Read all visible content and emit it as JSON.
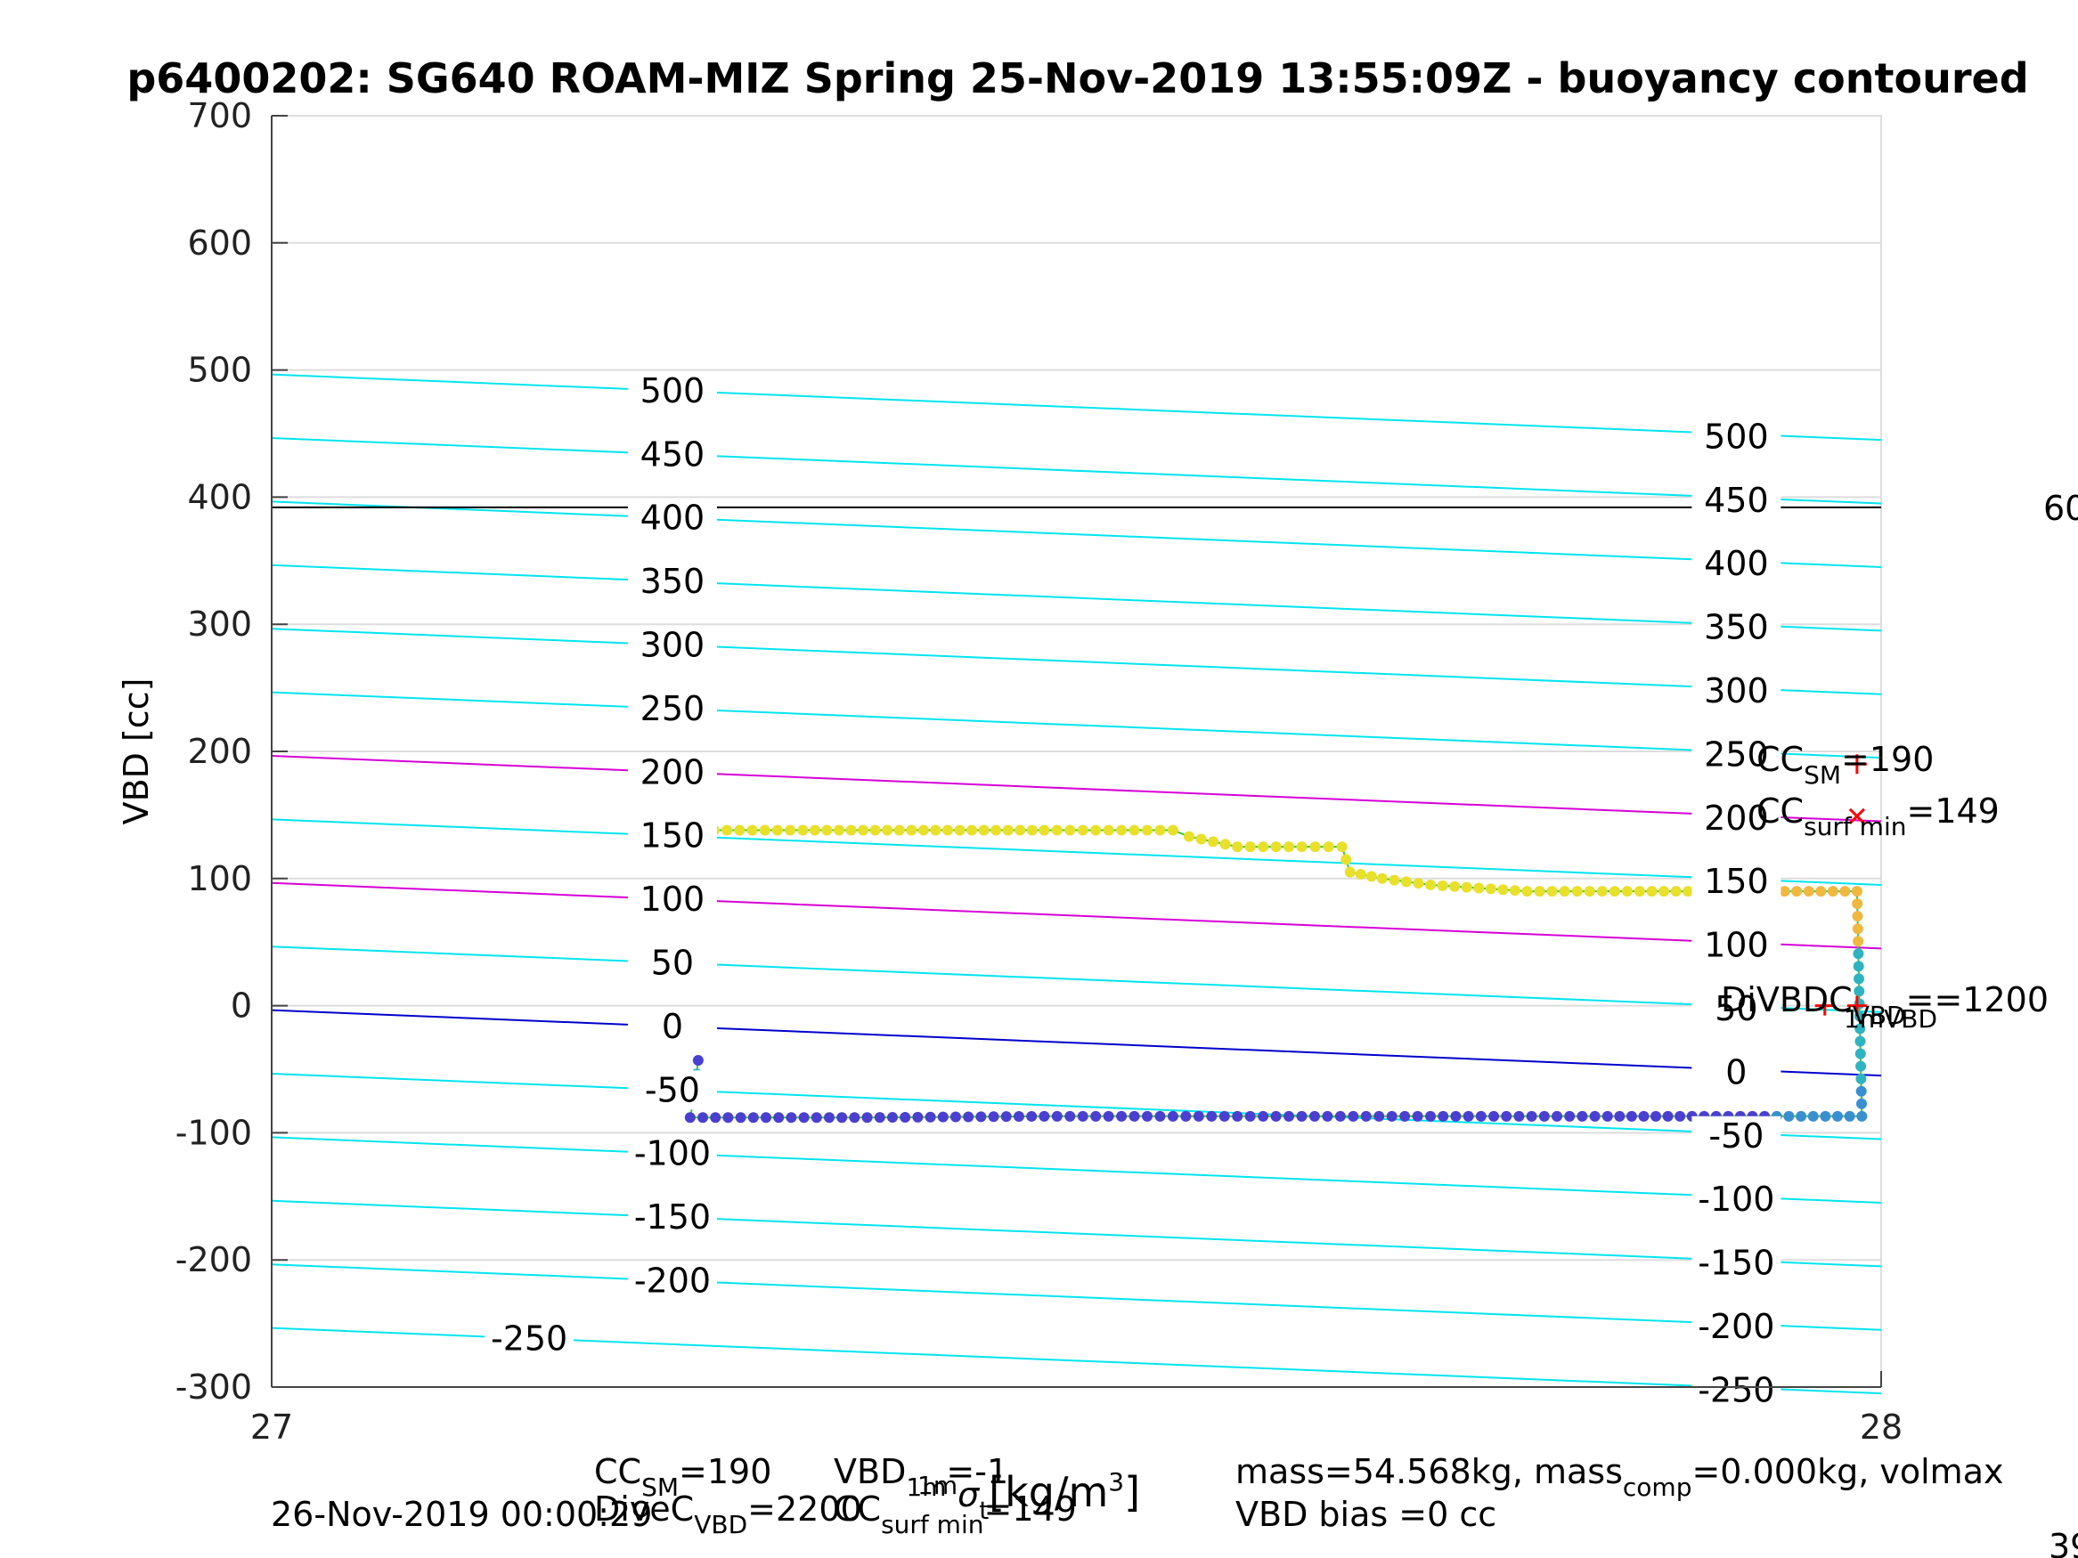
{
  "chart_data": {
    "type": "scatter",
    "title": "p6400202: SG640 ROAM-MIZ Spring 25-Nov-2019 13:55:09Z - buoyancy contoured",
    "ylabel": "VBD [cc]",
    "xlabel_main": "σ",
    "xlabel_sub": "t",
    "xlabel_sup": "1m",
    "xlabel_units": "[kg/m",
    "xlabel_units_sup": "3",
    "xlabel_units_end": "]",
    "xlim": [
      27,
      28
    ],
    "ylim": [
      -300,
      700
    ],
    "xticks": [
      "27",
      "28"
    ],
    "yticks": [
      "700",
      "600",
      "500",
      "400",
      "300",
      "200",
      "100",
      "0",
      "-100",
      "-200",
      "-300"
    ],
    "ytick_values": [
      700,
      600,
      500,
      400,
      300,
      200,
      100,
      0,
      -100,
      -200,
      -300
    ],
    "grid": true,
    "contour_colors": {
      "default": "#00e5ee",
      "magenta": "#d600d6",
      "zero": "#0000cc",
      "track": "#33cc33",
      "marker": "#ff0000",
      "hline": "#000000"
    },
    "contours": [
      {
        "level": 500,
        "y_left": 496.5,
        "y_right": 445.0,
        "color": "default"
      },
      {
        "level": 450,
        "y_left": 446.5,
        "y_right": 395.0,
        "color": "default"
      },
      {
        "level": 400,
        "y_left": 396.5,
        "y_right": 345.0,
        "color": "default"
      },
      {
        "level": 350,
        "y_left": 346.5,
        "y_right": 295.0,
        "color": "default"
      },
      {
        "level": 300,
        "y_left": 296.5,
        "y_right": 245.0,
        "color": "default"
      },
      {
        "level": 250,
        "y_left": 246.5,
        "y_right": 195.0,
        "color": "default"
      },
      {
        "level": 200,
        "y_left": 196.5,
        "y_right": 145.0,
        "color": "magenta"
      },
      {
        "level": 150,
        "y_left": 146.5,
        "y_right": 95.0,
        "color": "default"
      },
      {
        "level": 100,
        "y_left": 96.5,
        "y_right": 45.0,
        "color": "magenta"
      },
      {
        "level": 50,
        "y_left": 46.5,
        "y_right": -5.0,
        "color": "default"
      },
      {
        "level": 0,
        "y_left": -3.5,
        "y_right": -55.0,
        "color": "zero"
      },
      {
        "level": -50,
        "y_left": -53.5,
        "y_right": -105.0,
        "color": "default"
      },
      {
        "level": -100,
        "y_left": -103.5,
        "y_right": -155.0,
        "color": "default"
      },
      {
        "level": -150,
        "y_left": -153.5,
        "y_right": -205.0,
        "color": "default"
      },
      {
        "level": -200,
        "y_left": -203.5,
        "y_right": -255.0,
        "color": "default"
      },
      {
        "level": -250,
        "y_left": -253.5,
        "y_right": -305.0,
        "color": "default"
      }
    ],
    "contour_labels_mid": [
      "500",
      "450",
      "400",
      "350",
      "300",
      "250",
      "200",
      "150",
      "100",
      "50",
      "0",
      "-50",
      "-100",
      "-150",
      "-200"
    ],
    "contour_labels_mid_values": [
      500,
      450,
      400,
      350,
      300,
      250,
      200,
      150,
      100,
      50,
      0,
      -50,
      -100,
      -150,
      -200
    ],
    "contour_labels_right": [
      "500",
      "450",
      "400",
      "350",
      "300",
      "250",
      "200",
      "150",
      "100",
      "50",
      "0",
      "-50",
      "-100",
      "-150",
      "-200",
      "-250"
    ],
    "contour_labels_right_values": [
      500,
      450,
      400,
      350,
      300,
      250,
      200,
      150,
      100,
      50,
      0,
      -50,
      -100,
      -150,
      -200,
      -250
    ],
    "contour_label_low": {
      "text": "-250",
      "value": -250
    },
    "hline_value": 392,
    "edge_text": "60",
    "dive_climb": [
      {
        "x": 27.275,
        "y": 138
      },
      {
        "x": 27.33,
        "y": 138
      },
      {
        "x": 27.36,
        "y": 138
      },
      {
        "x": 27.42,
        "y": 138
      },
      {
        "x": 27.48,
        "y": 138
      },
      {
        "x": 27.52,
        "y": 138
      },
      {
        "x": 27.56,
        "y": 138
      },
      {
        "x": 27.57,
        "y": 133
      },
      {
        "x": 27.6,
        "y": 125
      },
      {
        "x": 27.64,
        "y": 125
      },
      {
        "x": 27.665,
        "y": 125
      },
      {
        "x": 27.67,
        "y": 105
      },
      {
        "x": 27.69,
        "y": 100
      },
      {
        "x": 27.72,
        "y": 95
      },
      {
        "x": 27.78,
        "y": 90
      },
      {
        "x": 27.85,
        "y": 90
      },
      {
        "x": 27.91,
        "y": 90
      },
      {
        "x": 27.97,
        "y": 90
      },
      {
        "x": 27.985,
        "y": 90
      },
      {
        "x": 27.988,
        "y": -87
      },
      {
        "x": 27.92,
        "y": -87
      },
      {
        "x": 27.83,
        "y": -87
      },
      {
        "x": 27.72,
        "y": -87
      },
      {
        "x": 27.6,
        "y": -87
      },
      {
        "x": 27.48,
        "y": -87
      },
      {
        "x": 27.37,
        "y": -88
      },
      {
        "x": 27.26,
        "y": -88
      },
      {
        "x": 27.262,
        "y": -75
      },
      {
        "x": 27.265,
        "y": -43
      }
    ],
    "markers": [
      {
        "symbol": "+",
        "x": 27.985,
        "y": 190
      },
      {
        "symbol": "x",
        "x": 27.985,
        "y": 149
      },
      {
        "symbol": "+",
        "x": 27.965,
        "y": 0
      },
      {
        "symbol": "+",
        "x": 27.985,
        "y": 0
      }
    ],
    "annotations": {
      "cc_sm": {
        "main": "CC",
        "sub": "SM",
        "rest": "=190"
      },
      "cc_surf": {
        "main": "CC",
        "sub": "surf min",
        "rest": "=149"
      },
      "vbd_overlap": {
        "a": "DiVBDC",
        "a_sub": "VBD",
        "a_rest": "==1200",
        "b": "1mVBD"
      }
    },
    "footer": {
      "date": "26-Nov-2019 00:00:29",
      "line1_a": "CC",
      "line1_a_sub": "SM",
      "line1_a_rest": "=190",
      "line1_b": "VBD",
      "line1_b_sub": "1m",
      "line1_b_rest": "=-1",
      "line2_a": "DiveC",
      "line2_a_sub": "VBD",
      "line2_a_rest": "=2200",
      "line2_b": "CC",
      "line2_b_sub": "surf min",
      "line2_b_rest": "=149",
      "mass_line": "mass=54.568kg, mass",
      "mass_sub": "comp",
      "mass_rest": "=0.000kg, volmax",
      "bias_line": "VBD bias =0 cc",
      "corner": "39"
    }
  }
}
